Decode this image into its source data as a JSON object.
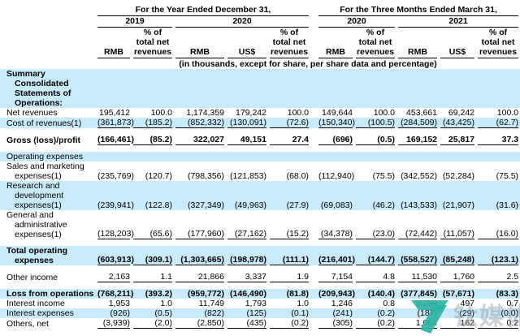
{
  "table": {
    "groups": [
      "For the Year Ended December 31,",
      "For the Three Months Ended March 31,"
    ],
    "years": [
      "2019",
      "2020",
      "2020",
      "2021"
    ],
    "columns": [
      "RMB",
      "% of\ntotal net\nrevenues",
      "RMB",
      "US$",
      "% of\ntotal net\nrevenues",
      "RMB",
      "% of\ntotal net\nrevenues",
      "RMB",
      "US$",
      "% of\ntotal net\nrevenues"
    ],
    "note": "(in thousands, except for share, per share data and percentage)",
    "rows": [
      {
        "label": "Summary Consolidated Statements of Operations:",
        "bold": true,
        "bg": "blue",
        "values": [
          "",
          "",
          "",
          "",
          "",
          "",
          "",
          "",
          "",
          ""
        ]
      },
      {
        "label": "Net revenues",
        "bg": "white",
        "values": [
          "195,412",
          "100.0",
          "1,174,359",
          "179,242",
          "100.0",
          "149,644",
          "100.0",
          "453,661",
          "69,242",
          "100.0"
        ]
      },
      {
        "label": "Cost of revenues(1)",
        "bg": "blue",
        "underline": true,
        "values": [
          "(361,873)",
          "(185.2)",
          "(852,332)",
          "(130,091)",
          "(72.6)",
          "(150,340)",
          "(100.5)",
          "(284,509)",
          "(43,425)",
          "(62.7)"
        ]
      },
      {
        "type": "spacer"
      },
      {
        "label": "Gross (loss)/profit",
        "bold": true,
        "bg": "white",
        "underline": true,
        "values": [
          "(166,461)",
          "(85.2)",
          "322,027",
          "49,151",
          "27.4",
          "(696)",
          "(0.5)",
          "169,152",
          "25,817",
          "37.3"
        ]
      },
      {
        "type": "spacer"
      },
      {
        "label": "Operating expenses",
        "bg": "blue",
        "values": [
          "",
          "",
          "",
          "",
          "",
          "",
          "",
          "",
          "",
          ""
        ]
      },
      {
        "label": "Sales and marketing expenses(1)",
        "bg": "white",
        "values": [
          "(235,769)",
          "(120.7)",
          "(798,356)",
          "(121,853)",
          "(68.0)",
          "(112,940)",
          "(75.5)",
          "(342,552)",
          "(52,284)",
          "(75.5)"
        ]
      },
      {
        "label": "Research and development expenses(1)",
        "bg": "blue",
        "values": [
          "(239,941)",
          "(122.8)",
          "(327,349)",
          "(49,963)",
          "(27.9)",
          "(69,083)",
          "(46.2)",
          "(143,533)",
          "(21,907)",
          "(31.6)"
        ]
      },
      {
        "label": "General and administrative expenses(1)",
        "bg": "white",
        "underline": true,
        "values": [
          "(128,203)",
          "(65.6)",
          "(177,960)",
          "(27,162)",
          "(15.2)",
          "(34,378)",
          "(23.0)",
          "(72,442)",
          "(11,057)",
          "(16.0)"
        ]
      },
      {
        "type": "spacer"
      },
      {
        "label": "Total operating expenses",
        "bold": true,
        "bg": "blue",
        "underline": true,
        "values": [
          "(603,913)",
          "(309.1)",
          "(1,303,665)",
          "(198,978)",
          "(111.1)",
          "(216,401)",
          "(144.7)",
          "(558,527)",
          "(85,248)",
          "(123.1)"
        ]
      },
      {
        "type": "spacer"
      },
      {
        "label": "Other income",
        "bg": "white",
        "underline": true,
        "values": [
          "2,163",
          "1.1",
          "21,866",
          "3,337",
          "1.9",
          "7,154",
          "4.8",
          "11,530",
          "1,760",
          "2.5"
        ]
      },
      {
        "type": "spacer"
      },
      {
        "label": "Loss from operations",
        "bold": true,
        "bg": "blue",
        "values": [
          "(768,211)",
          "(393.2)",
          "(959,772)",
          "(146,490)",
          "(81.8)",
          "(209,943)",
          "(140.4)",
          "(377,845)",
          "(57,671)",
          "(83.3)"
        ]
      },
      {
        "label": "Interest income",
        "bg": "white",
        "values": [
          "1,953",
          "1.0",
          "11,749",
          "1,793",
          "1.0",
          "1,246",
          "0.8",
          "3,259",
          "497",
          "0.7"
        ]
      },
      {
        "label": "Interest expenses",
        "bg": "blue",
        "values": [
          "(926)",
          "(0.5)",
          "(822)",
          "(125)",
          "(0.1)",
          "(241)",
          "(0.2)",
          "(187)",
          "(29)",
          "(0.0)"
        ]
      },
      {
        "label": "Others, net",
        "bg": "white",
        "underline": true,
        "values": [
          "(3,939)",
          "(2.0)",
          "(2,850)",
          "(435)",
          "(0.2)",
          "(305)",
          "(0.2)",
          "1,064",
          "162",
          "0.2"
        ]
      }
    ]
  },
  "watermark": {
    "text": "钛媒体",
    "logo_color": "#2cb4a4"
  }
}
